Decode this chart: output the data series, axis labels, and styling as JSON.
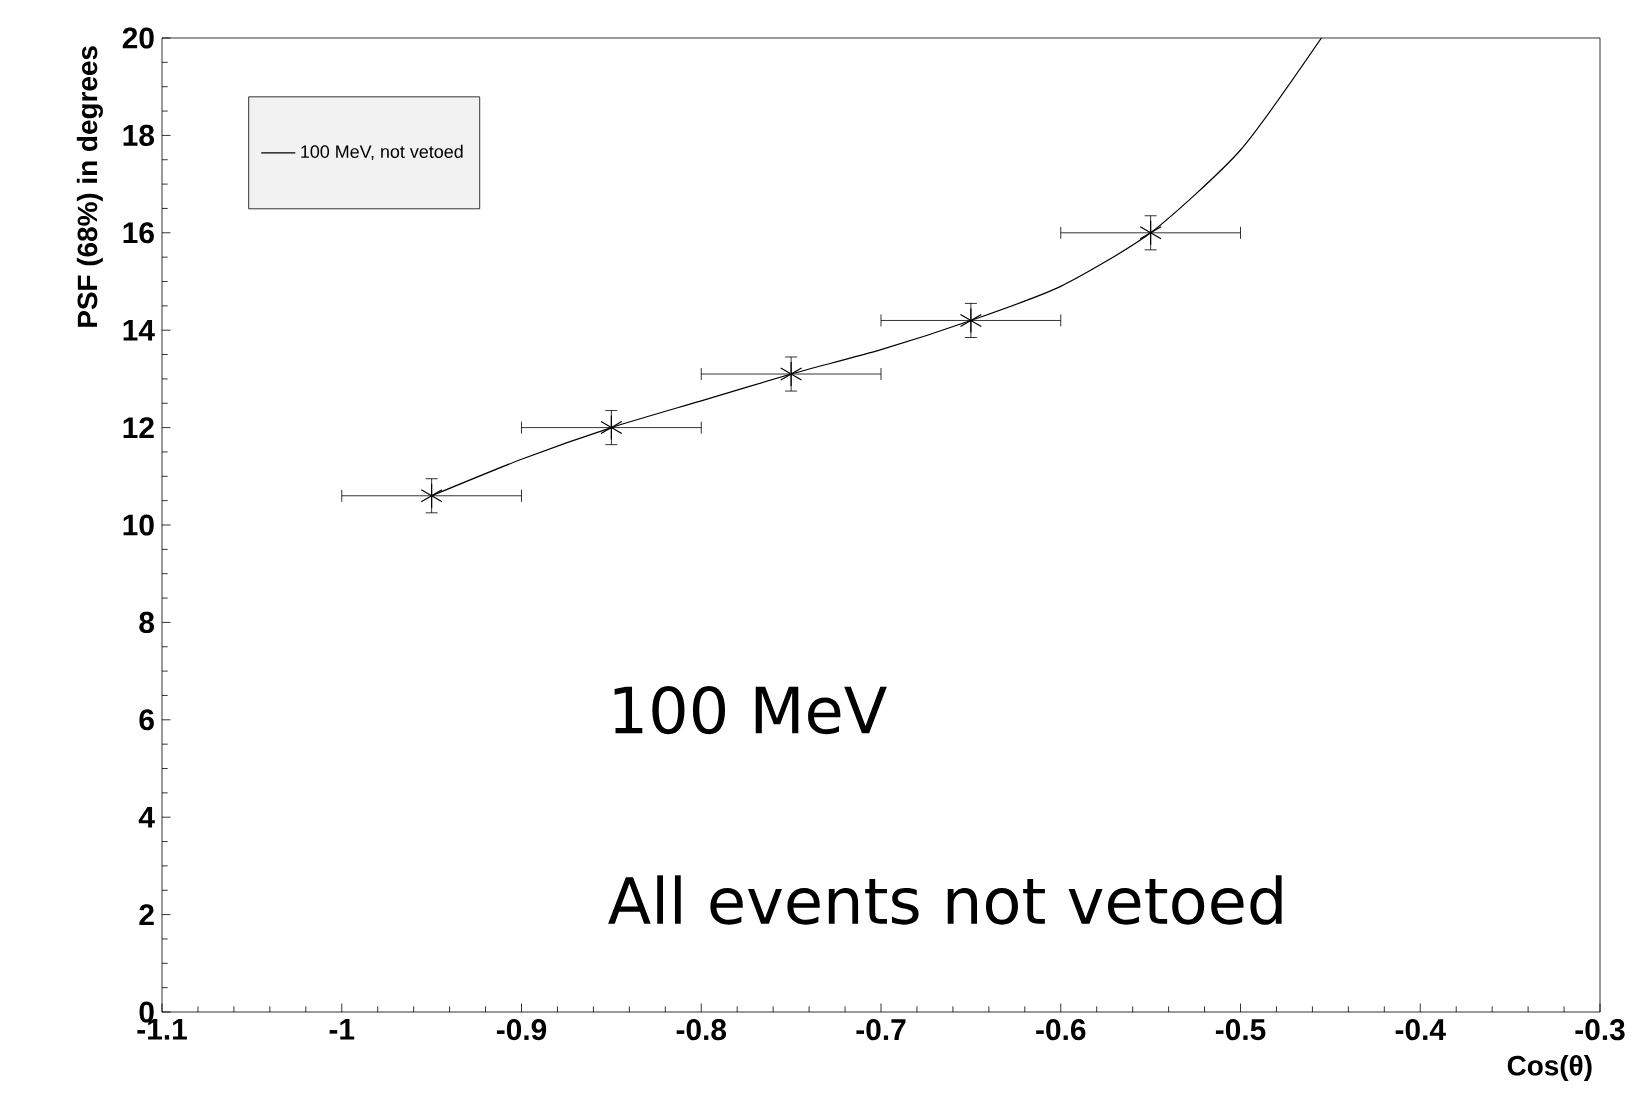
{
  "chart_data": {
    "type": "scatter",
    "xlabel": "Cos(θ)",
    "ylabel": "PSF (68%) in degrees",
    "xlim": [
      -1.1,
      -0.3
    ],
    "ylim": [
      0,
      20
    ],
    "xticks": [
      -1.1,
      -1,
      -0.9,
      -0.8,
      -0.7,
      -0.6,
      -0.5,
      -0.4,
      -0.3
    ],
    "yticks": [
      0,
      2,
      4,
      6,
      8,
      10,
      12,
      14,
      16,
      18,
      20
    ],
    "grid": false,
    "legend": "top left",
    "marker": "cross",
    "annotations": [
      "100 MeV",
      "All events not vetoed"
    ],
    "series": [
      {
        "color": "#000000",
        "x": [
          -0.95,
          -0.85,
          -0.75,
          -0.65,
          -0.55
        ],
        "values": [
          10.6,
          12.0,
          13.1,
          14.2,
          16.0
        ],
        "errors": [
          0.35,
          0.35,
          0.35,
          0.35,
          0.35
        ],
        "xerrors": [
          0.05,
          0.05,
          0.05,
          0.05,
          0.05
        ]
      },
      {
        "type": "line",
        "name": "100 MeV, not vetoed",
        "color": "#000000",
        "marker": "none",
        "line_style": "solid",
        "x": [
          -0.95,
          -0.9,
          -0.85,
          -0.8,
          -0.75,
          -0.7,
          -0.65,
          -0.6,
          -0.55,
          -0.5,
          -0.455
        ],
        "values": [
          10.6,
          11.35,
          12.0,
          12.55,
          13.1,
          13.6,
          14.2,
          14.9,
          16.0,
          17.7,
          20
        ]
      }
    ]
  }
}
